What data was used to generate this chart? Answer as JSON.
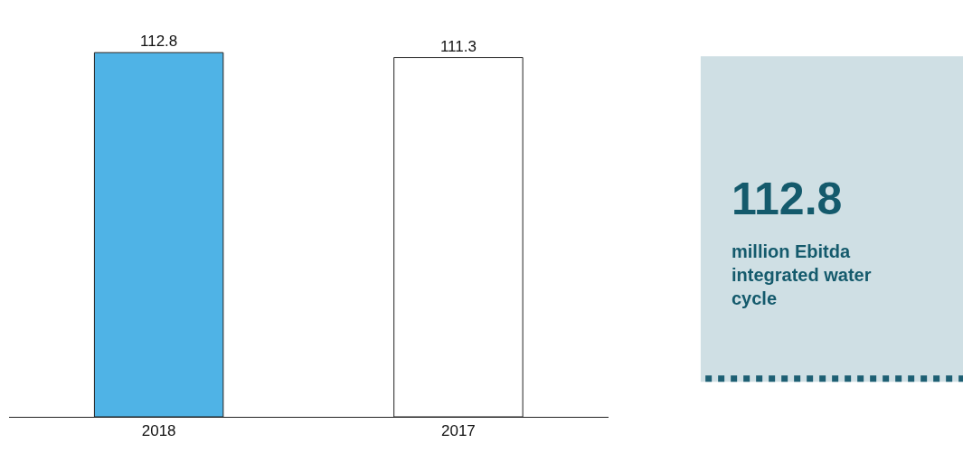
{
  "chart_data": {
    "type": "bar",
    "categories": [
      "2018",
      "2017"
    ],
    "values": [
      112.8,
      111.3
    ],
    "colors": [
      "#4fb3e6",
      "#ffffff"
    ],
    "data_labels": true,
    "grid": false,
    "annotations": [
      "112.8",
      "million Ebitda integrated water cycle"
    ]
  }
}
